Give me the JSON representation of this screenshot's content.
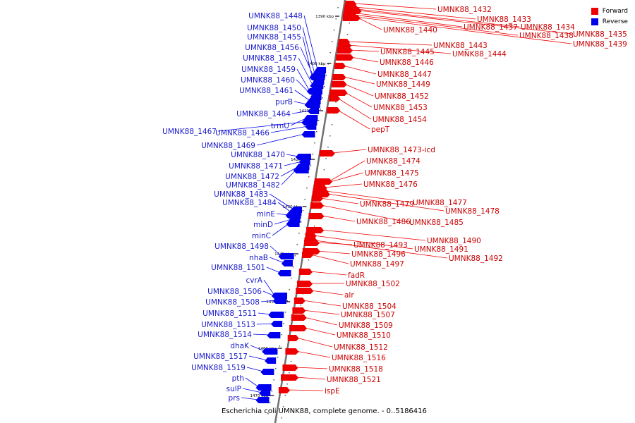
{
  "caption": "Escherichia coli UMNK88, complete genome. - 0..5186416",
  "legend": [
    {
      "label": "Forward",
      "color": "#ee0000"
    },
    {
      "label": "Reverse",
      "color": "#0000ee"
    }
  ],
  "colors": {
    "forward": "#ee0000",
    "reverse": "#0000ee",
    "axis": "#888888",
    "label_forward": "#cc0000",
    "label_reverse": "#1a1acc"
  },
  "ticks": [
    "1390 kbp",
    "1400 kbp",
    "1410 kbp",
    "1420 kbp",
    "1430 kbp",
    "1440 kbp",
    "1450 kbp",
    "1460 kbp",
    "1470 kbp"
  ],
  "forward_genes": [
    "UMNK88_1432",
    "UMNK88_1433",
    "UMNK88_1434",
    "UMNK88_1435",
    "UMNK88_1437",
    "UMNK88_1438",
    "UMNK88_1439",
    "UMNK88_1440",
    "UMNK88_1443",
    "UMNK88_1444",
    "UMNK88_1445",
    "UMNK88_1446",
    "UMNK88_1447",
    "UMNK88_1449",
    "UMNK88_1452",
    "UMNK88_1453",
    "UMNK88_1454",
    "pepT",
    "UMNK88_1473-icd",
    "UMNK88_1474",
    "UMNK88_1475",
    "UMNK88_1476",
    "UMNK88_1477",
    "UMNK88_1478",
    "UMNK88_1479",
    "UMNK88_1485",
    "UMNK88_1486",
    "UMNK88_1490",
    "UMNK88_1491",
    "UMNK88_1492",
    "UMNK88_1493",
    "UMNK88_1496",
    "UMNK88_1497",
    "fadR",
    "UMNK88_1502",
    "alr",
    "UMNK88_1504",
    "UMNK88_1507",
    "UMNK88_1509",
    "UMNK88_1510",
    "UMNK88_1512",
    "UMNK88_1516",
    "UMNK88_1518",
    "UMNK88_1521",
    "ispE"
  ],
  "reverse_genes": [
    "UMNK88_1448",
    "UMNK88_1450",
    "UMNK88_1455",
    "UMNK88_1456",
    "UMNK88_1457",
    "UMNK88_1459",
    "UMNK88_1460",
    "UMNK88_1461",
    "purB",
    "UMNK88_1464",
    "trmU",
    "UMNK88_1467",
    "UMNK88_1466",
    "UMNK88_1469",
    "UMNK88_1470",
    "UMNK88_1471",
    "UMNK88_1472",
    "UMNK88_1482",
    "UMNK88_1483",
    "UMNK88_1484",
    "minE",
    "minD",
    "minC",
    "UMNK88_1498",
    "nhaB",
    "UMNK88_1501",
    "cvrA",
    "UMNK88_1506",
    "UMNK88_1508",
    "UMNK88_1511",
    "UMNK88_1513",
    "UMNK88_1514",
    "dhaK",
    "UMNK88_1517",
    "UMNK88_1519",
    "pth",
    "sulP",
    "prs"
  ]
}
